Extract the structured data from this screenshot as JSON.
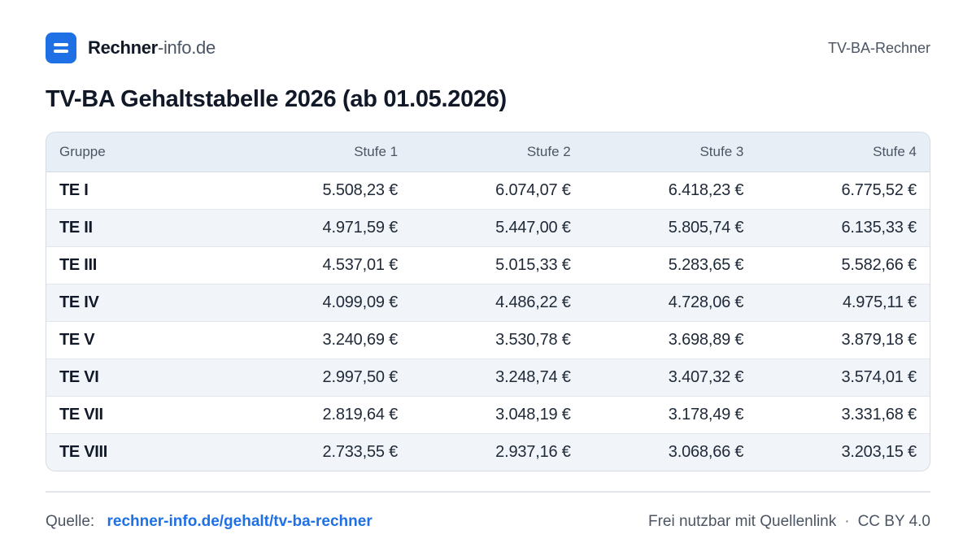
{
  "brand": {
    "name_bold": "Rechner",
    "name_light": "-info.de",
    "icon": "menu-lines-icon",
    "accent_color": "#1f6fe5"
  },
  "header": {
    "right_label": "TV-BA-Rechner"
  },
  "page": {
    "title": "TV-BA Gehaltstabelle 2026 (ab 01.05.2026)"
  },
  "table": {
    "columns": [
      "Gruppe",
      "Stufe 1",
      "Stufe 2",
      "Stufe 3",
      "Stufe 4"
    ],
    "rows": [
      {
        "group": "TE I",
        "values": [
          "5.508,23 €",
          "6.074,07 €",
          "6.418,23 €",
          "6.775,52 €"
        ]
      },
      {
        "group": "TE II",
        "values": [
          "4.971,59 €",
          "5.447,00 €",
          "5.805,74 €",
          "6.135,33 €"
        ]
      },
      {
        "group": "TE III",
        "values": [
          "4.537,01 €",
          "5.015,33 €",
          "5.283,65 €",
          "5.582,66 €"
        ]
      },
      {
        "group": "TE IV",
        "values": [
          "4.099,09 €",
          "4.486,22 €",
          "4.728,06 €",
          "4.975,11 €"
        ]
      },
      {
        "group": "TE V",
        "values": [
          "3.240,69 €",
          "3.530,78 €",
          "3.698,89 €",
          "3.879,18 €"
        ]
      },
      {
        "group": "TE VI",
        "values": [
          "2.997,50 €",
          "3.248,74 €",
          "3.407,32 €",
          "3.574,01 €"
        ]
      },
      {
        "group": "TE VII",
        "values": [
          "2.819,64 €",
          "3.048,19 €",
          "3.178,49 €",
          "3.331,68 €"
        ]
      },
      {
        "group": "TE VIII",
        "values": [
          "2.733,55 €",
          "2.937,16 €",
          "3.068,66 €",
          "3.203,15 €"
        ]
      }
    ]
  },
  "footer": {
    "source_label": "Quelle:",
    "source_link": "rechner-info.de/gehalt/tv-ba-rechner",
    "usage_note": "Frei nutzbar mit Quellenlink",
    "separator": "·",
    "license": "CC BY 4.0"
  }
}
